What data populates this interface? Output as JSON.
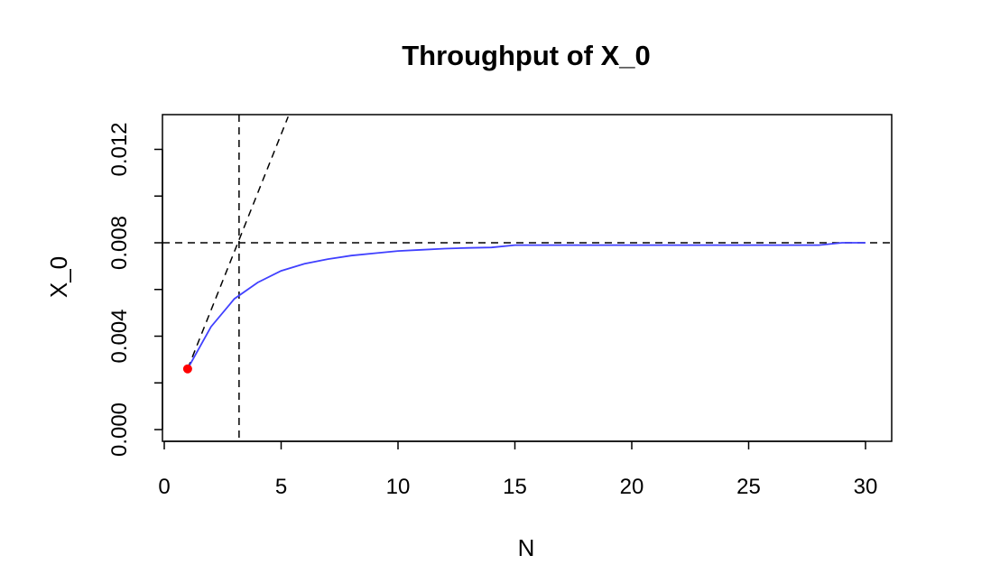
{
  "chart_data": {
    "type": "line",
    "title": "Throughput of X_0",
    "xlabel": "N",
    "ylabel": "X_0",
    "xlim": [
      0,
      31
    ],
    "ylim": [
      0,
      0.0133
    ],
    "x_ticks": [
      0,
      5,
      10,
      15,
      20,
      25,
      30
    ],
    "x_tick_labels": [
      "0",
      "5",
      "10",
      "15",
      "20",
      "25",
      "30"
    ],
    "y_ticks": [
      0,
      0.002,
      0.004,
      0.006,
      0.008,
      0.01,
      0.012
    ],
    "y_tick_labels": [
      "0.000",
      "",
      "0.004",
      "",
      "0.008",
      "",
      "0.012"
    ],
    "series": [
      {
        "color": "#4040ff",
        "x": [
          1,
          2,
          3,
          4,
          5,
          6,
          7,
          8,
          9,
          10,
          11,
          12,
          13,
          14,
          15,
          16,
          17,
          18,
          19,
          20,
          21,
          22,
          23,
          24,
          25,
          26,
          27,
          28,
          29,
          30
        ],
        "y": [
          0.0026,
          0.0044,
          0.0056,
          0.0063,
          0.0068,
          0.0071,
          0.0073,
          0.00745,
          0.00755,
          0.00765,
          0.0077,
          0.00775,
          0.00778,
          0.0078,
          0.0079,
          0.0079,
          0.0079,
          0.0079,
          0.0079,
          0.0079,
          0.0079,
          0.0079,
          0.0079,
          0.0079,
          0.0079,
          0.0079,
          0.0079,
          0.0079,
          0.008,
          0.008
        ]
      }
    ],
    "start_point": {
      "x": 1,
      "y": 0.0026,
      "color": "#ff0000"
    },
    "reference_lines": {
      "horizontal_y": 0.008,
      "vertical_x": 3.2,
      "diagonal": {
        "x1": 1,
        "y1": 0.0026,
        "x2": 5.3,
        "y2": 0.0134
      },
      "color": "#000000"
    }
  }
}
